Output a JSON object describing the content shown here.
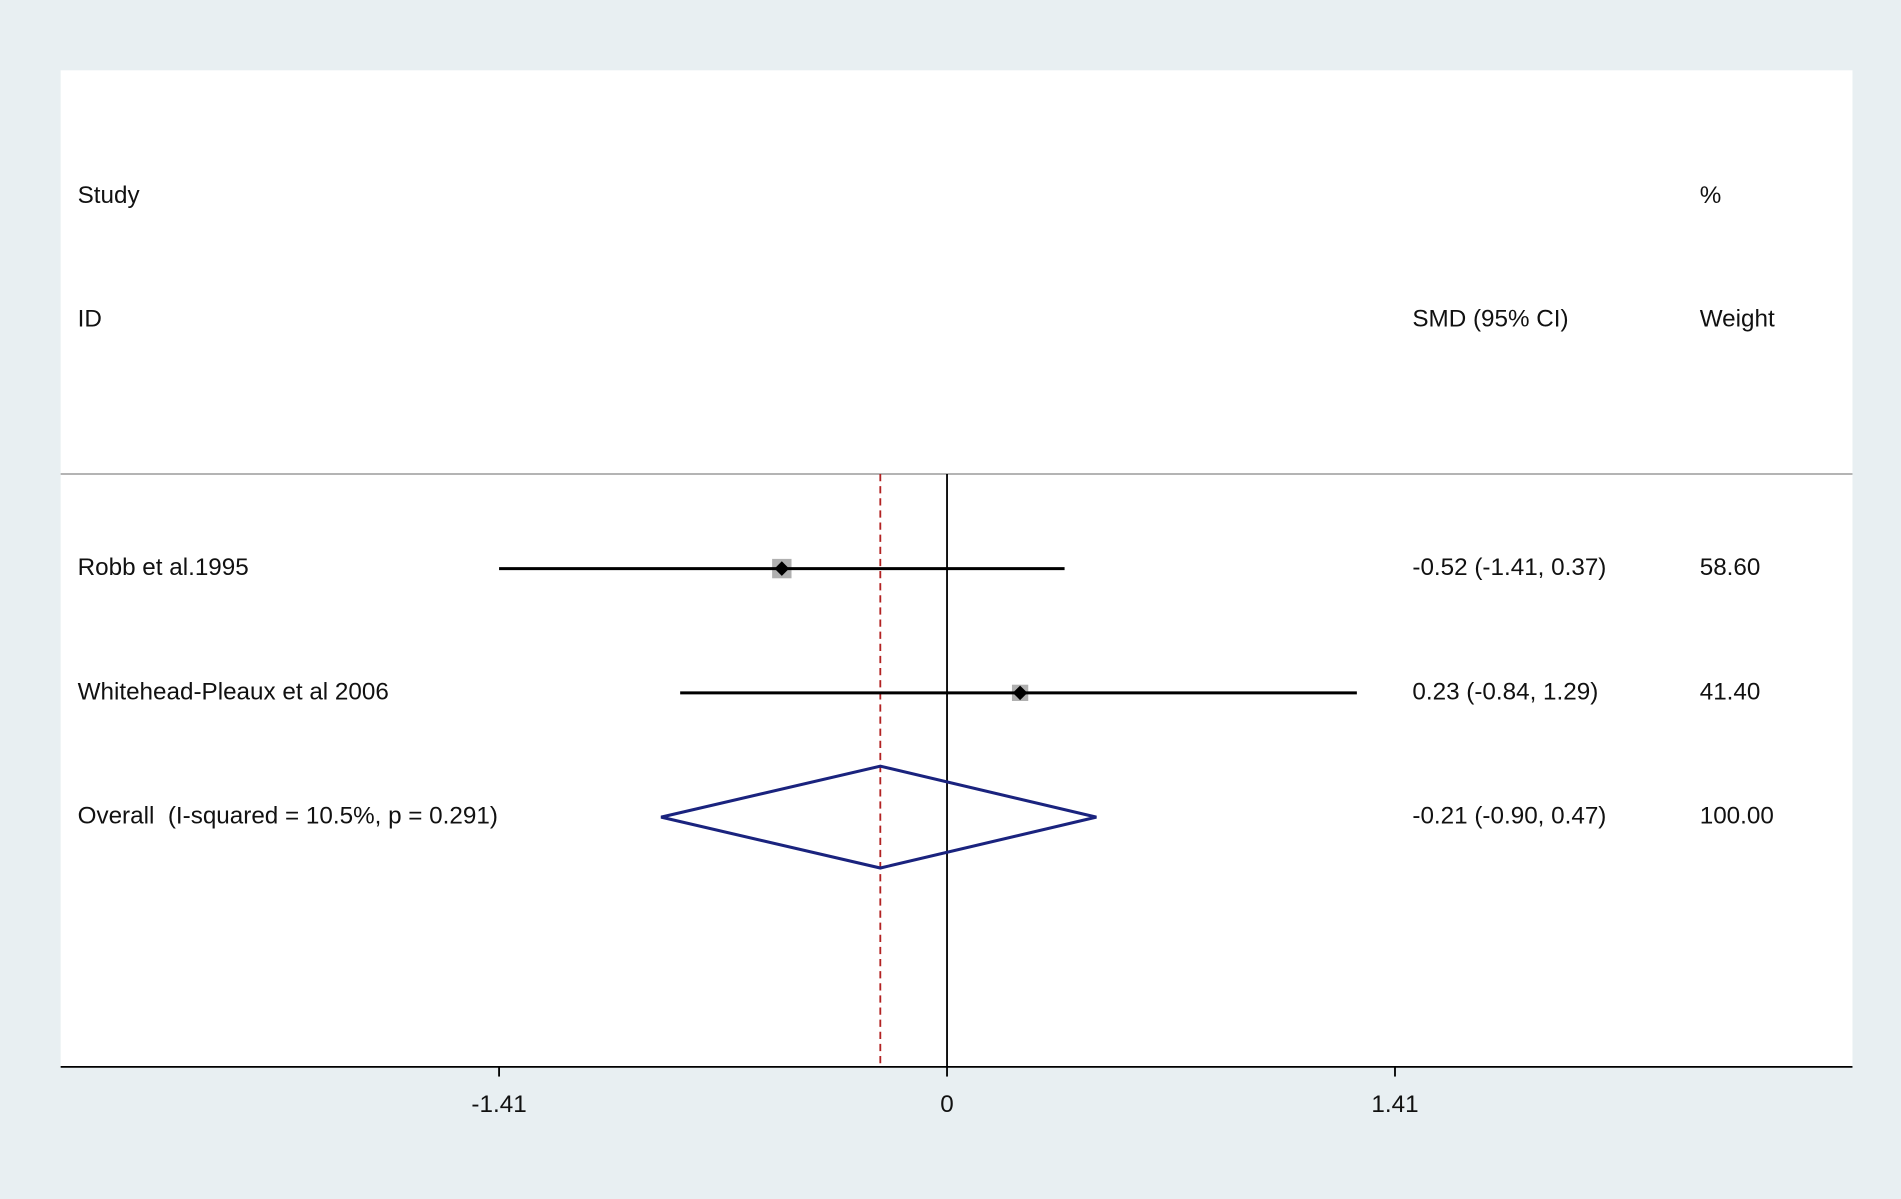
{
  "chart_data": {
    "type": "forest",
    "headers": {
      "study": "Study",
      "id": "ID",
      "effect": "SMD (95% CI)",
      "percent": "%",
      "weight": "Weight"
    },
    "studies": [
      {
        "name": "Robb et al.1995",
        "estimate": -0.52,
        "lower": -1.41,
        "upper": 0.37,
        "ci_label": "-0.52 (-1.41, 0.37)",
        "weight": 58.6,
        "weight_label": "58.60"
      },
      {
        "name": "Whitehead-Pleaux et al 2006",
        "estimate": 0.23,
        "lower": -0.84,
        "upper": 1.29,
        "ci_label": "0.23 (-0.84, 1.29)",
        "weight": 41.4,
        "weight_label": "41.40"
      }
    ],
    "overall": {
      "name": "Overall  (I-squared = 10.5%, p = 0.291)",
      "estimate": -0.21,
      "lower": -0.9,
      "upper": 0.47,
      "ci_label": "-0.21 (-0.90, 0.47)",
      "weight": 100,
      "weight_label": "100.00"
    },
    "xlim": [
      -2.79,
      2.85
    ],
    "xticks": [
      -1.41,
      0,
      1.41
    ],
    "colors": {
      "box": "#b0b0b0",
      "point": "#000000",
      "ci": "#000000",
      "diamond": "#1a237e",
      "overall_line": "#b22222"
    }
  }
}
